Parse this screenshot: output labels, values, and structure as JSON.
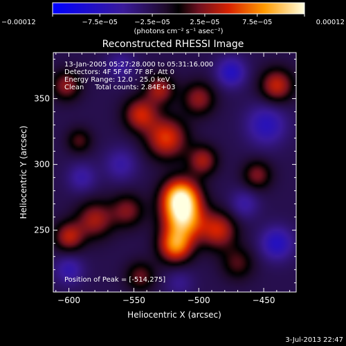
{
  "chart_data": {
    "type": "heatmap",
    "title": "Reconstructed RHESSI Image",
    "xlabel": "Heliocentric X (arcsec)",
    "ylabel": "Heliocentric Y (arcsec)",
    "xlim": [
      -612,
      -425
    ],
    "ylim": [
      203,
      385
    ],
    "xticks": [
      -600,
      -550,
      -500,
      -450
    ],
    "xtick_labels": [
      "−600",
      "−550",
      "−500",
      "−450"
    ],
    "yticks": [
      250,
      300,
      350
    ],
    "ytick_labels": [
      "250",
      "300",
      "350"
    ],
    "colorbar": {
      "range": [
        -0.00012,
        0.00012
      ],
      "ticks": [
        -0.00012,
        -7.5e-05,
        -2.5e-05,
        2.5e-05,
        7.5e-05,
        0.00012
      ],
      "tick_labels": [
        "−0.00012",
        "−7.5e−05",
        "−2.5e−05",
        "2.5e−05",
        "7.5e−05",
        "0.00012"
      ],
      "unit_label": "(photons cm⁻² s⁻¹ asec⁻²)"
    },
    "annotations": [
      "13-Jan-2005 05:27:28.000 to 05:31:16.000",
      "Detectors: 4F 5F 6F 7F 8F, Att 0",
      "Energy Range: 12.0 - 25.0 keV",
      "Clean     Total counts: 2.84E+03"
    ],
    "peak_text": "Position of Peak = [-514,275]",
    "peak": {
      "x": -514,
      "y": 275
    },
    "sources": [
      {
        "x": -514,
        "y": 275,
        "r": 10,
        "v": 0.00012
      },
      {
        "x": -512,
        "y": 258,
        "r": 11,
        "v": 0.0001
      },
      {
        "x": -518,
        "y": 238,
        "r": 9,
        "v": 8.5e-05
      },
      {
        "x": -525,
        "y": 320,
        "r": 11,
        "v": 7e-05
      },
      {
        "x": -545,
        "y": 338,
        "r": 9,
        "v": 6e-05
      },
      {
        "x": -530,
        "y": 357,
        "r": 8,
        "v": 5e-05
      },
      {
        "x": -500,
        "y": 350,
        "r": 9,
        "v": 4.5e-05
      },
      {
        "x": -497,
        "y": 303,
        "r": 8,
        "v": 5e-05
      },
      {
        "x": -485,
        "y": 250,
        "r": 10,
        "v": 6e-05
      },
      {
        "x": -555,
        "y": 265,
        "r": 9,
        "v": 4e-05
      },
      {
        "x": -580,
        "y": 258,
        "r": 10,
        "v": 5e-05
      },
      {
        "x": -600,
        "y": 245,
        "r": 8,
        "v": 5.5e-05
      },
      {
        "x": -602,
        "y": 360,
        "r": 8,
        "v": 4.5e-05
      },
      {
        "x": -592,
        "y": 318,
        "r": 7,
        "v": 3e-05
      },
      {
        "x": -440,
        "y": 360,
        "r": 9,
        "v": 6e-05
      },
      {
        "x": -455,
        "y": 292,
        "r": 8,
        "v": 4e-05
      },
      {
        "x": -470,
        "y": 225,
        "r": 9,
        "v": 3e-05
      },
      {
        "x": -545,
        "y": 215,
        "r": 8,
        "v": 3.5e-05
      },
      {
        "x": -475,
        "y": 370,
        "r": 8,
        "v": -6e-05
      },
      {
        "x": -448,
        "y": 330,
        "r": 11,
        "v": -5.5e-05
      },
      {
        "x": -440,
        "y": 240,
        "r": 9,
        "v": -6e-05
      },
      {
        "x": -465,
        "y": 270,
        "r": 8,
        "v": -4e-05
      },
      {
        "x": -560,
        "y": 300,
        "r": 9,
        "v": -4e-05
      },
      {
        "x": -590,
        "y": 290,
        "r": 8,
        "v": -4e-05
      },
      {
        "x": -600,
        "y": 220,
        "r": 8,
        "v": -4.5e-05
      },
      {
        "x": -515,
        "y": 210,
        "r": 8,
        "v": -3e-05
      },
      {
        "x": -560,
        "y": 375,
        "r": 8,
        "v": -3.5e-05
      }
    ]
  },
  "footer": {
    "timestamp": "3-Jul-2013 22:47"
  }
}
